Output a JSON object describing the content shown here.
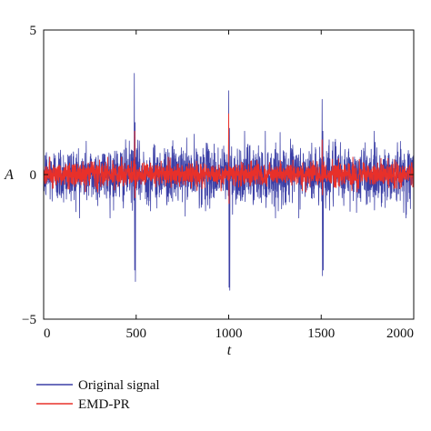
{
  "chart_data": {
    "type": "line",
    "xlabel": "t",
    "ylabel": "A",
    "xlim": [
      0,
      2000
    ],
    "ylim": [
      -5,
      5
    ],
    "xticks": [
      0,
      500,
      1000,
      1500,
      2000
    ],
    "yticks": [
      -5,
      0,
      5
    ],
    "xtick_labels": [
      "0",
      "500",
      "1000",
      "1500",
      "2000"
    ],
    "ytick_labels": [
      "−5",
      "0",
      "5"
    ],
    "grid": false,
    "legend_position": "bottom-left, outside plot",
    "series": [
      {
        "name": "Original signal",
        "color": "#3b3fa6",
        "noise_std": 0.5,
        "features": [
          {
            "t": 490,
            "values": [
              3.5,
              -3.3,
              1.8,
              -3.7
            ]
          },
          {
            "t": 1000,
            "values": [
              2.9,
              -3.9,
              1.6,
              -4.0
            ]
          },
          {
            "t": 1505,
            "values": [
              2.6,
              -3.5,
              1.5,
              -3.3
            ]
          }
        ]
      },
      {
        "name": "EMD-PR",
        "color": "#e8302a",
        "noise_std": 0.2,
        "features": [
          {
            "t": 492,
            "values": [
              1.5,
              -0.8
            ]
          },
          {
            "t": 1000,
            "values": [
              2.1,
              -1.0
            ]
          },
          {
            "t": 1505,
            "values": [
              1.2,
              -0.7
            ]
          }
        ]
      }
    ]
  }
}
